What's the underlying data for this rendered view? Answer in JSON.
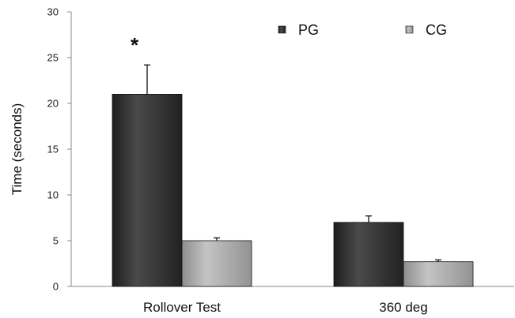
{
  "chart_data": {
    "type": "bar",
    "ylabel": "Time (seconds)",
    "ylim": [
      0,
      30
    ],
    "yticks": [
      0,
      5,
      10,
      15,
      20,
      25,
      30
    ],
    "grid": false,
    "legend_position": "top-right",
    "categories": [
      "Rollover Test",
      "360 deg"
    ],
    "series": [
      {
        "name": "PG",
        "values": [
          21.0,
          7.0
        ],
        "errors": [
          3.2,
          0.7
        ],
        "color": "#3a3a3a"
      },
      {
        "name": "CG",
        "values": [
          5.0,
          2.7
        ],
        "errors": [
          0.3,
          0.2
        ],
        "color": "#a9a9a9"
      }
    ],
    "annotations": [
      {
        "text": "*",
        "category": "Rollover Test",
        "y": 27.5
      }
    ]
  }
}
